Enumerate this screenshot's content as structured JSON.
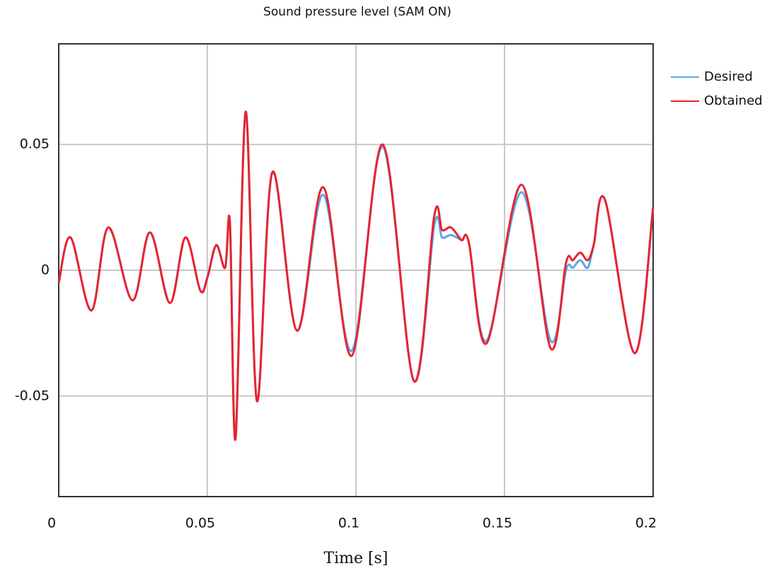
{
  "chart_data": {
    "type": "line",
    "title": "Sound pressure level (SAM ON)",
    "xlabel": "Time [s]",
    "x": [
      0,
      0.004,
      0.011,
      0.0167,
      0.0248,
      0.0307,
      0.0374,
      0.0426,
      0.0476,
      0.05,
      0.053,
      0.056,
      0.0576,
      0.0595,
      0.0629,
      0.0667,
      0.0719,
      0.0802,
      0.089,
      0.0986,
      0.109,
      0.1195,
      0.1264,
      0.129,
      0.132,
      0.1355,
      0.138,
      0.144,
      0.1557,
      0.1655,
      0.1707,
      0.173,
      0.1755,
      0.178,
      0.18,
      0.1838,
      0.1938,
      0.2
    ],
    "series": [
      {
        "name": "Desired",
        "color": "#5aa9e6",
        "values": [
          -0.005,
          0.013,
          -0.016,
          0.017,
          -0.012,
          0.015,
          -0.013,
          0.013,
          -0.008,
          -0.003,
          0.01,
          0.001,
          0.019,
          -0.067,
          0.063,
          -0.052,
          0.039,
          -0.024,
          0.03,
          -0.032,
          0.049,
          -0.044,
          0.018,
          0.013,
          0.014,
          0.012,
          0.011,
          -0.028,
          0.031,
          -0.028,
          0.0,
          0.001,
          0.004,
          0.001,
          0.01,
          0.028,
          -0.033,
          0.025
        ]
      },
      {
        "name": "Obtained",
        "color": "#e8232f",
        "values": [
          -0.005,
          0.013,
          -0.016,
          0.017,
          -0.012,
          0.015,
          -0.013,
          0.013,
          -0.008,
          -0.003,
          0.01,
          0.001,
          0.019,
          -0.067,
          0.063,
          -0.052,
          0.039,
          -0.024,
          0.033,
          -0.034,
          0.05,
          -0.044,
          0.022,
          0.016,
          0.017,
          0.012,
          0.011,
          -0.029,
          0.034,
          -0.031,
          0.003,
          0.004,
          0.007,
          0.004,
          0.01,
          0.028,
          -0.033,
          0.025
        ]
      }
    ],
    "xlim": [
      0,
      0.2
    ],
    "xticks": [
      0,
      0.05,
      0.1,
      0.15,
      0.2
    ],
    "ylim": [
      -0.09,
      0.09
    ],
    "yticks": [
      -0.05,
      0,
      0.05
    ],
    "grid": true,
    "legend": "right"
  }
}
